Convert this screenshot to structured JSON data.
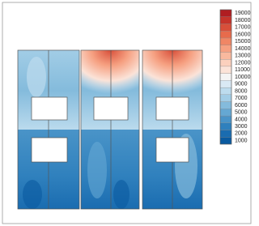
{
  "chart_data": {
    "type": "contour",
    "colorbar": {
      "levels": [
        1000,
        2000,
        3000,
        4000,
        5000,
        6000,
        7000,
        8000,
        9000,
        10000,
        11000,
        12000,
        13000,
        14000,
        15000,
        16000,
        17000,
        18000,
        19000
      ],
      "colors": [
        "#0a5aa0",
        "#1a6cb0",
        "#2f80bd",
        "#4a94c8",
        "#65a8d3",
        "#84bbdc",
        "#a2cde6",
        "#bddcee",
        "#d9e9f4",
        "#f4f4f4",
        "#fbe3d8",
        "#fbd0bd",
        "#f9b99e",
        "#f6a081",
        "#f08665",
        "#e76b4c",
        "#d84f3a",
        "#c6342b",
        "#b01d21"
      ]
    }
  }
}
